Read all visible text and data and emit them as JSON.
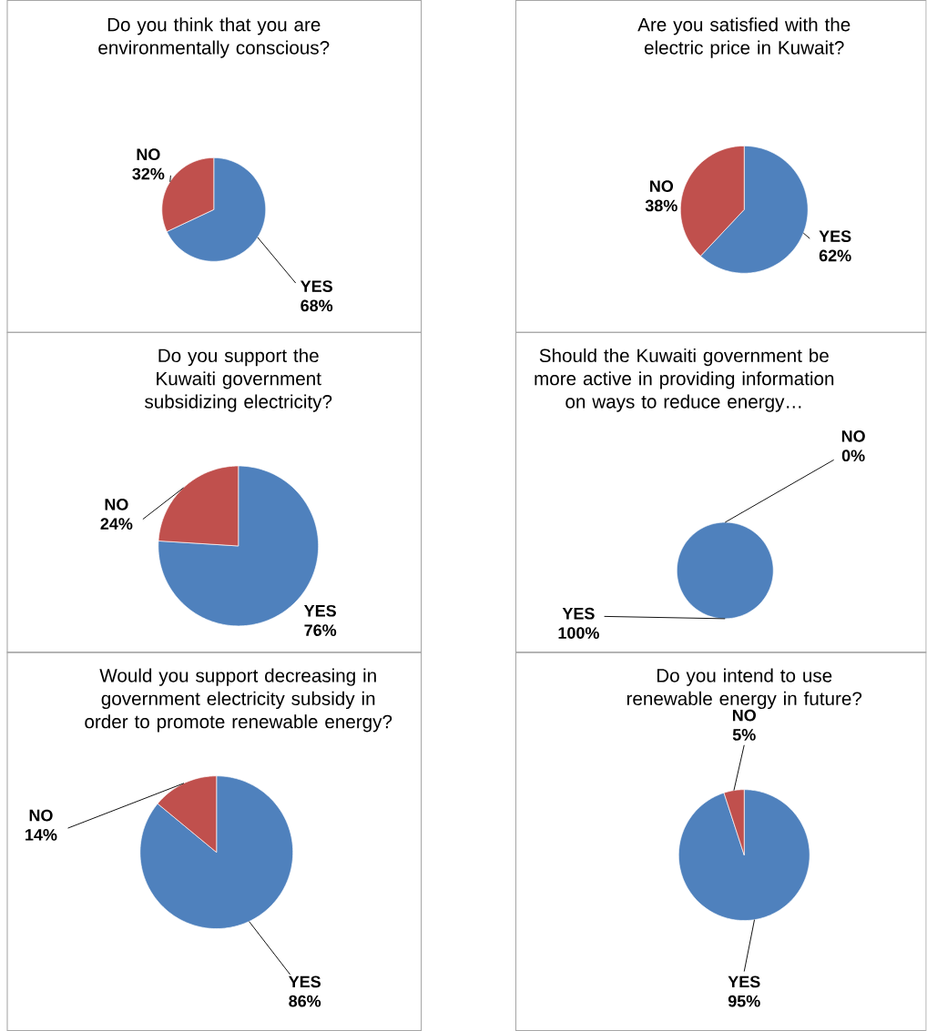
{
  "chart_data": [
    {
      "type": "pie",
      "title": "Do you think that you are environmentally conscious?",
      "categories": [
        "YES",
        "NO"
      ],
      "values": [
        68,
        32
      ],
      "value_labels": [
        "68%",
        "32%"
      ],
      "colors": [
        "#4f81bd",
        "#c0504d"
      ]
    },
    {
      "type": "pie",
      "title": "Are you satisfied with the electric price in Kuwait?",
      "categories": [
        "YES",
        "NO"
      ],
      "values": [
        62,
        38
      ],
      "value_labels": [
        "62%",
        "38%"
      ],
      "colors": [
        "#4f81bd",
        "#c0504d"
      ]
    },
    {
      "type": "pie",
      "title": "Do you support the Kuwaiti government subsidizing electricity?",
      "categories": [
        "YES",
        "NO"
      ],
      "values": [
        76,
        24
      ],
      "value_labels": [
        "76%",
        "24%"
      ],
      "colors": [
        "#4f81bd",
        "#c0504d"
      ]
    },
    {
      "type": "pie",
      "title": "Should the Kuwaiti government be more active in providing information on ways to reduce energy…",
      "categories": [
        "YES",
        "NO"
      ],
      "values": [
        100,
        0
      ],
      "value_labels": [
        "100%",
        "0%"
      ],
      "colors": [
        "#4f81bd",
        "#c0504d"
      ]
    },
    {
      "type": "pie",
      "title": "Would you support decreasing in government electricity subsidy in order to promote renewable energy?",
      "categories": [
        "YES",
        "NO"
      ],
      "values": [
        86,
        14
      ],
      "value_labels": [
        "86%",
        "14%"
      ],
      "colors": [
        "#4f81bd",
        "#c0504d"
      ]
    },
    {
      "type": "pie",
      "title": "Do you intend to use renewable energy in future?",
      "categories": [
        "YES",
        "NO"
      ],
      "values": [
        95,
        5
      ],
      "value_labels": [
        "95%",
        "5%"
      ],
      "colors": [
        "#4f81bd",
        "#c0504d"
      ]
    }
  ]
}
